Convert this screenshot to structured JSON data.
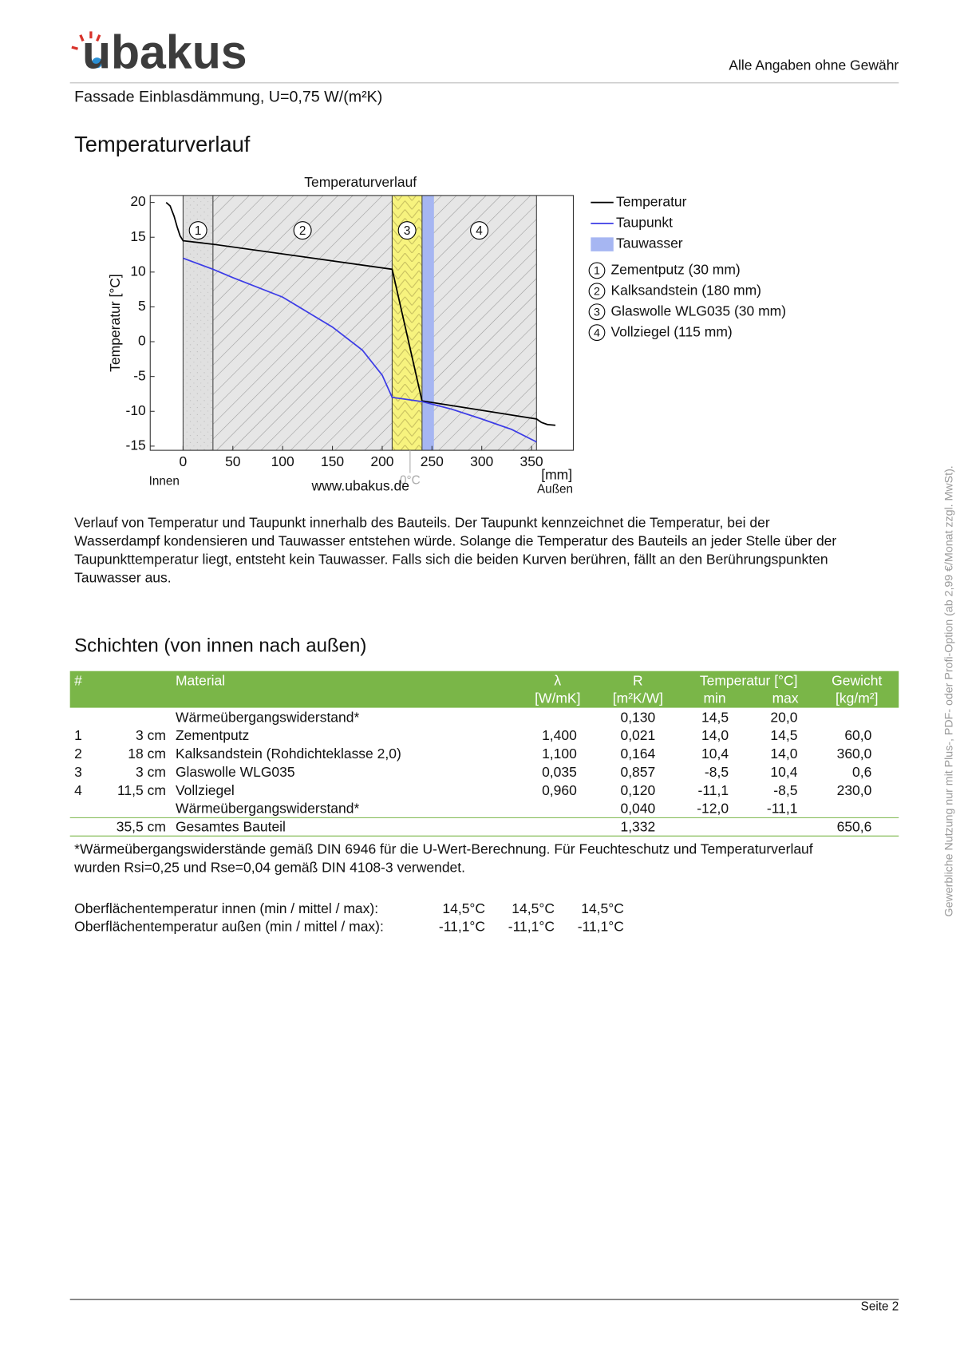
{
  "header": {
    "logo": "ubakus",
    "disclaimer": "Alle Angaben ohne Gewähr",
    "subtitle": "Fassade Einblasdämmung, U=0,75 W/(m²K)"
  },
  "section_title": "Temperaturverlauf",
  "chart_data": {
    "type": "line",
    "title": "Temperaturverlauf",
    "y_label": "Temperatur [°C]",
    "x_unit": "[mm]",
    "inner_label": "Innen",
    "outer_label": "Außen",
    "website": "www.ubakus.de",
    "zero_marker": {
      "text": "0°C",
      "x": 228
    },
    "xlim": [
      -33,
      392
    ],
    "ylim": [
      -15.6,
      21
    ],
    "xticks": [
      0,
      50,
      100,
      150,
      200,
      250,
      300,
      350
    ],
    "yticks": [
      20,
      15,
      10,
      5,
      0,
      -5,
      -10,
      -15
    ],
    "series": [
      {
        "name": "Temperatur",
        "color": "#000000",
        "x": [
          -17,
          -13,
          -9,
          -6,
          -3,
          0,
          30,
          210,
          240,
          355,
          360,
          366,
          374
        ],
        "values": [
          20,
          19.5,
          18,
          16.5,
          15.2,
          14.5,
          14.0,
          10.4,
          -8.5,
          -11.1,
          -11.6,
          -11.9,
          -12.0
        ]
      },
      {
        "name": "Taupunkt",
        "color": "#3c3ce6",
        "x": [
          0,
          30,
          50,
          100,
          150,
          180,
          200,
          210,
          240,
          270,
          300,
          330,
          355
        ],
        "values": [
          12.0,
          10.4,
          9.2,
          6.4,
          2.1,
          -1.2,
          -4.8,
          -8.0,
          -8.6,
          -9.7,
          -11.1,
          -12.6,
          -14.4
        ]
      }
    ],
    "condensation": {
      "name": "Tauwasser",
      "color": "#a6b6f2",
      "x": [
        240,
        252
      ]
    },
    "layers": [
      {
        "label": "1",
        "name": "Zementputz (30 mm)",
        "x": [
          0,
          30
        ],
        "pattern": "dots"
      },
      {
        "label": "2",
        "name": "Kalksandstein (180 mm)",
        "x": [
          30,
          210
        ],
        "pattern": "hatch"
      },
      {
        "label": "3",
        "name": "Glaswolle WLG035 (30 mm)",
        "x": [
          210,
          240
        ],
        "pattern": "wool"
      },
      {
        "label": "4",
        "name": "Vollziegel (115 mm)",
        "x": [
          240,
          355
        ],
        "pattern": "hatch"
      }
    ]
  },
  "description": [
    "Verlauf von Temperatur und Taupunkt innerhalb des Bauteils. Der Taupunkt kennzeichnet die Temperatur, bei der",
    "Wasserdampf kondensieren und Tauwasser entstehen würde. Solange die Temperatur des Bauteils an jeder Stelle über der",
    "Taupunkttemperatur liegt, entsteht kein Tauwasser. Falls sich die beiden Kurven berühren, fällt an den Berührungspunkten",
    "Tauwasser aus."
  ],
  "layers_title": "Schichten (von innen nach außen)",
  "table": {
    "header": [
      [
        "#",
        null,
        "Material",
        "λ",
        "R",
        "Temperatur [°C]",
        null,
        "Gewicht"
      ],
      [
        null,
        null,
        null,
        "[W/mK]",
        "[m²K/W]",
        "min",
        "max",
        "[kg/m²]"
      ]
    ],
    "rows": [
      [
        null,
        null,
        "Wärmeübergangswiderstand*",
        null,
        "0,130",
        "14,5",
        "20,0",
        null
      ],
      [
        "1",
        "3 cm",
        "Zementputz",
        "1,400",
        "0,021",
        "14,0",
        "14,5",
        "60,0"
      ],
      [
        "2",
        "18 cm",
        "Kalksandstein (Rohdichteklasse 2,0)",
        "1,100",
        "0,164",
        "10,4",
        "14,0",
        "360,0"
      ],
      [
        "3",
        "3 cm",
        "Glaswolle WLG035",
        "0,035",
        "0,857",
        "-8,5",
        "10,4",
        "0,6"
      ],
      [
        "4",
        "11,5 cm",
        "Vollziegel",
        "0,960",
        "0,120",
        "-11,1",
        "-8,5",
        "230,0"
      ],
      [
        null,
        null,
        "Wärmeübergangswiderstand*",
        null,
        "0,040",
        "-12,0",
        "-11,1",
        null
      ]
    ],
    "total": [
      null,
      "35,5 cm",
      "Gesamtes Bauteil",
      null,
      "1,332",
      null,
      null,
      "650,6"
    ]
  },
  "footnote": [
    "*Wärmeübergangswiderstände gemäß DIN 6946 für die U-Wert-Berechnung. Für Feuchteschutz und Temperaturverlauf",
    "wurden Rsi=0,25 und Rse=0,04 gemäß DIN 4108-3 verwendet."
  ],
  "surface_temperatures": [
    {
      "label": "Oberflächentemperatur innen (min / mittel / max):",
      "values": [
        "14,5°C",
        "14,5°C",
        "14,5°C"
      ]
    },
    {
      "label": "Oberflächentemperatur außen (min / mittel / max):",
      "values": [
        "-11,1°C",
        "-11,1°C",
        "-11,1°C"
      ]
    }
  ],
  "side_note": "Gewerbliche Nutzung nur mit Plus-, PDF- oder Profi-Option (ab 2,99 €/Monat zzgl. MwSt).",
  "footer": {
    "page": "Seite 2"
  }
}
